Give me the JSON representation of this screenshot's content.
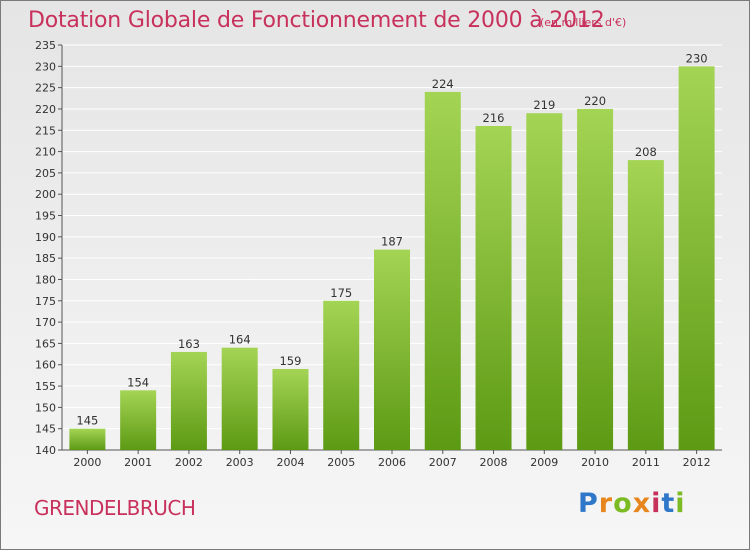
{
  "header": {
    "title": "Dotation Globale de Fonctionnement de 2000 à 2012",
    "subtitle": "(en milliers d'€)"
  },
  "footer": {
    "commune": "GRENDELBRUCH",
    "logo_letters": [
      "P",
      "r",
      "o",
      "x",
      "i",
      "t",
      "i"
    ]
  },
  "colors": {
    "title": "#c8315c",
    "bar_light": "#a4d454",
    "bar_dark": "#5d9a14",
    "grid": "#ffffff"
  },
  "chart_data": {
    "type": "bar",
    "title": "Dotation Globale de Fonctionnement de 2000 à 2012",
    "subtitle": "(en milliers d'€)",
    "categories": [
      "2000",
      "2001",
      "2002",
      "2003",
      "2004",
      "2005",
      "2006",
      "2007",
      "2008",
      "2009",
      "2010",
      "2011",
      "2012"
    ],
    "values": [
      145,
      154,
      163,
      164,
      159,
      175,
      187,
      224,
      216,
      219,
      220,
      208,
      230
    ],
    "ylim": [
      140,
      235
    ],
    "ytick_step": 5,
    "grid": true,
    "data_labels": true
  }
}
